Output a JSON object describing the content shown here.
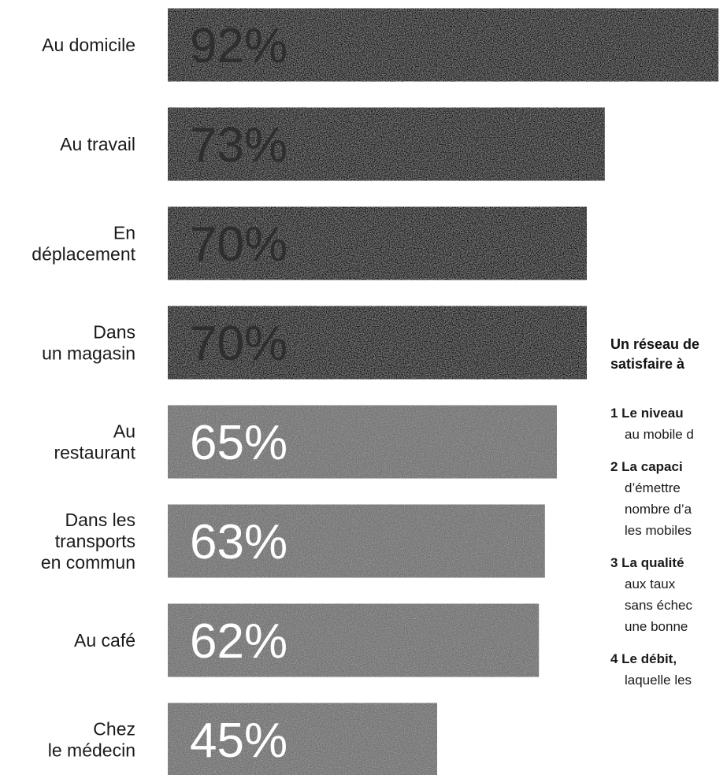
{
  "chart_data": {
    "type": "bar",
    "orientation": "horizontal",
    "categories": [
      [
        "Au domicile"
      ],
      [
        "Au travail"
      ],
      [
        "En",
        "déplacement"
      ],
      [
        "Dans",
        "un magasin"
      ],
      [
        "Au",
        "restaurant"
      ],
      [
        "Dans les",
        "transports",
        "en commun"
      ],
      [
        "Au café"
      ],
      [
        "Chez",
        "le médecin"
      ]
    ],
    "values": [
      92,
      73,
      70,
      70,
      65,
      63,
      62,
      45
    ],
    "value_labels": [
      "92%",
      "73%",
      "70%",
      "70%",
      "65%",
      "63%",
      "62%",
      "45%"
    ],
    "colors": {
      "high": "#0d0d0d",
      "low": "#6f6f6f",
      "high_text": "#2e2e2e",
      "low_text": "#ffffff"
    },
    "high_count": 4,
    "grid": false,
    "legend": "none"
  },
  "side": {
    "title_lines": [
      "Un réseau de",
      "satisfaire à"
    ],
    "items": [
      {
        "lead": "1 Le niveau",
        "cont": [
          "au mobile d"
        ]
      },
      {
        "lead": "2 La capaci",
        "cont": [
          "d’émettre",
          "nombre d’a",
          "les mobiles"
        ]
      },
      {
        "lead": "3 La qualité",
        "cont": [
          "aux  taux",
          "sans échec",
          "une bonne"
        ]
      },
      {
        "lead": "4 Le débit,",
        "cont": [
          "laquelle les"
        ]
      }
    ]
  }
}
